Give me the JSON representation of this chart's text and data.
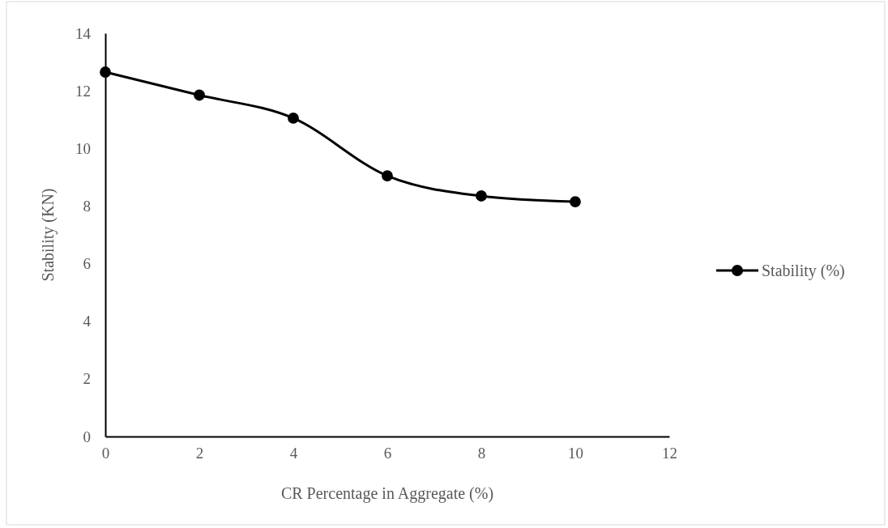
{
  "chart_data": {
    "type": "line",
    "xlabel": "CR Percentage in Aggregate (%)",
    "ylabel": "Stability (KN)",
    "x": [
      0,
      2,
      4,
      6,
      8,
      10
    ],
    "series": [
      {
        "name": "Stability (%)",
        "color": "#000000",
        "values": [
          12.65,
          11.85,
          11.05,
          9.05,
          8.35,
          8.15
        ]
      }
    ],
    "xlim": [
      0,
      12
    ],
    "xticks": [
      0,
      2,
      4,
      6,
      8,
      10,
      12
    ],
    "ylim": [
      0,
      14
    ],
    "yticks": [
      0,
      2,
      4,
      6,
      8,
      10,
      12,
      14
    ],
    "marker": "circle",
    "line_style": "solid",
    "legend": "right",
    "grid": false
  }
}
